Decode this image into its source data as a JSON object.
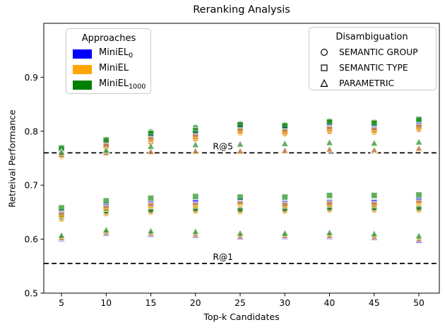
{
  "chart_data": {
    "type": "scatter",
    "title": "Reranking Analysis",
    "xlabel": "Top-k Candidates",
    "ylabel": "Retreival Performance",
    "x_categories": [
      "5",
      "10",
      "15",
      "20",
      "25",
      "30",
      "40",
      "45",
      "50"
    ],
    "yticks": [
      "0.5",
      "0.6",
      "0.7",
      "0.8",
      "0.9"
    ],
    "ylim": [
      0.5,
      1.0
    ],
    "grid": false,
    "legend_positions": [
      "upper-left",
      "upper-right"
    ],
    "hlines": [
      {
        "label": "R@5",
        "value": 0.76
      },
      {
        "label": "R@1",
        "value": 0.555
      }
    ],
    "series": [
      {
        "approach": "MiniEL_0",
        "shape": "circle",
        "metric": "R@5",
        "color": "#0000FF",
        "values": [
          0.755,
          0.772,
          0.781,
          0.787,
          0.799,
          0.797,
          0.801,
          0.8,
          0.805
        ]
      },
      {
        "approach": "MiniEL",
        "shape": "circle",
        "metric": "R@5",
        "color": "#FFA500",
        "values": [
          0.753,
          0.77,
          0.779,
          0.785,
          0.797,
          0.795,
          0.799,
          0.798,
          0.803
        ]
      },
      {
        "approach": "MiniEL_1000",
        "shape": "circle",
        "metric": "R@5",
        "color": "#008000",
        "values": [
          0.767,
          0.782,
          0.799,
          0.807,
          0.814,
          0.812,
          0.819,
          0.817,
          0.82
        ]
      },
      {
        "approach": "MiniEL_0",
        "shape": "square",
        "metric": "R@5",
        "color": "#0000FF",
        "values": [
          0.758,
          0.776,
          0.789,
          0.795,
          0.806,
          0.804,
          0.809,
          0.807,
          0.812
        ]
      },
      {
        "approach": "MiniEL",
        "shape": "square",
        "metric": "R@5",
        "color": "#FFA500",
        "values": [
          0.756,
          0.773,
          0.785,
          0.79,
          0.801,
          0.799,
          0.804,
          0.802,
          0.808
        ]
      },
      {
        "approach": "MiniEL_1000",
        "shape": "square",
        "metric": "R@5",
        "color": "#008000",
        "values": [
          0.769,
          0.784,
          0.796,
          0.801,
          0.812,
          0.81,
          0.817,
          0.815,
          0.822
        ]
      },
      {
        "approach": "MiniEL_0",
        "shape": "triangle",
        "metric": "R@5",
        "color": "#0000FF",
        "values": [
          0.757,
          0.761,
          0.763,
          0.764,
          0.764,
          0.765,
          0.767,
          0.766,
          0.769
        ]
      },
      {
        "approach": "MiniEL",
        "shape": "triangle",
        "metric": "R@5",
        "color": "#FFA500",
        "values": [
          0.756,
          0.76,
          0.762,
          0.763,
          0.763,
          0.764,
          0.766,
          0.765,
          0.768
        ]
      },
      {
        "approach": "MiniEL_1000",
        "shape": "triangle",
        "metric": "R@5",
        "color": "#008000",
        "values": [
          0.761,
          0.765,
          0.772,
          0.775,
          0.776,
          0.777,
          0.779,
          0.778,
          0.78
        ]
      },
      {
        "approach": "MiniEL_0",
        "shape": "circle",
        "metric": "R@1",
        "color": "#0000FF",
        "values": [
          0.64,
          0.65,
          0.652,
          0.654,
          0.653,
          0.654,
          0.656,
          0.656,
          0.656
        ]
      },
      {
        "approach": "MiniEL",
        "shape": "circle",
        "metric": "R@1",
        "color": "#FFA500",
        "values": [
          0.637,
          0.647,
          0.65,
          0.652,
          0.651,
          0.652,
          0.654,
          0.654,
          0.654
        ]
      },
      {
        "approach": "MiniEL_1000",
        "shape": "circle",
        "metric": "R@1",
        "color": "#008000",
        "values": [
          0.642,
          0.652,
          0.654,
          0.656,
          0.655,
          0.656,
          0.658,
          0.658,
          0.658
        ]
      },
      {
        "approach": "MiniEL_0",
        "shape": "square",
        "metric": "R@1",
        "color": "#0000FF",
        "values": [
          0.65,
          0.662,
          0.666,
          0.668,
          0.67,
          0.666,
          0.668,
          0.668,
          0.672
        ]
      },
      {
        "approach": "MiniEL",
        "shape": "square",
        "metric": "R@1",
        "color": "#FFA500",
        "values": [
          0.645,
          0.657,
          0.662,
          0.663,
          0.665,
          0.663,
          0.665,
          0.664,
          0.667
        ]
      },
      {
        "approach": "MiniEL_1000",
        "shape": "square",
        "metric": "R@1",
        "color": "#008000",
        "values": [
          0.658,
          0.671,
          0.676,
          0.679,
          0.678,
          0.678,
          0.681,
          0.681,
          0.682
        ]
      },
      {
        "approach": "MiniEL_0",
        "shape": "triangle",
        "metric": "R@1",
        "color": "#0000FF",
        "values": [
          0.601,
          0.611,
          0.609,
          0.607,
          0.604,
          0.605,
          0.605,
          0.603,
          0.598
        ]
      },
      {
        "approach": "MiniEL",
        "shape": "triangle",
        "metric": "R@1",
        "color": "#FFA500",
        "values": [
          0.603,
          0.613,
          0.611,
          0.609,
          0.606,
          0.607,
          0.607,
          0.605,
          0.601
        ]
      },
      {
        "approach": "MiniEL_1000",
        "shape": "triangle",
        "metric": "R@1",
        "color": "#008000",
        "values": [
          0.607,
          0.617,
          0.615,
          0.614,
          0.611,
          0.611,
          0.612,
          0.61,
          0.606
        ]
      }
    ]
  },
  "legends": {
    "approaches": {
      "title": "Approaches",
      "items": [
        {
          "label": "MiniEL",
          "sub": "0",
          "color": "#0000FF"
        },
        {
          "label": "MiniEL",
          "sub": "",
          "color": "#FFA500"
        },
        {
          "label": "MiniEL",
          "sub": "1000",
          "color": "#008000"
        }
      ]
    },
    "disambiguation": {
      "title": "Disambiguation",
      "items": [
        {
          "label": "SEMANTIC GROUP",
          "marker": "circle"
        },
        {
          "label": "SEMANTIC TYPE",
          "marker": "square"
        },
        {
          "label": "PARAMETRIC",
          "marker": "triangle"
        }
      ]
    }
  }
}
